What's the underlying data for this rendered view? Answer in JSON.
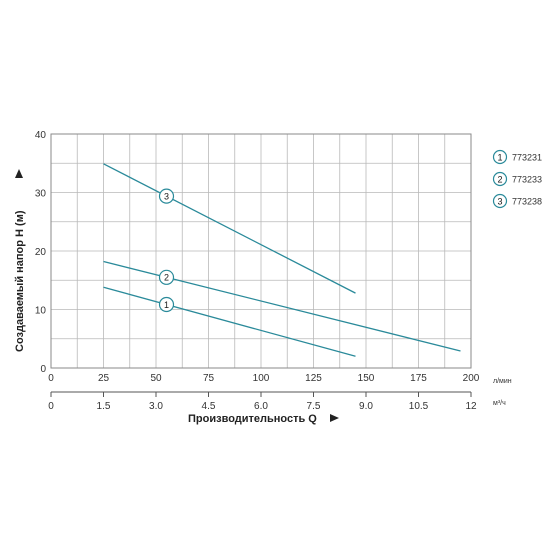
{
  "chart_data": {
    "type": "line",
    "colors": {
      "line": "#2a8a9a",
      "grid": "#b9b9b9",
      "frame": "#8a8a8a",
      "text": "#333333"
    },
    "x_primary": {
      "unit": "л/мин",
      "range": [
        0,
        200
      ],
      "ticks": [
        0,
        25,
        50,
        75,
        100,
        125,
        150,
        175,
        200
      ],
      "tick_labels": [
        "0",
        "25",
        "50",
        "75",
        "100",
        "125",
        "150",
        "175",
        "200"
      ]
    },
    "x_secondary": {
      "unit": "м³/ч",
      "range": [
        0,
        12
      ],
      "ticks": [
        0,
        1.5,
        3.0,
        4.5,
        6.0,
        7.5,
        9.0,
        10.5,
        12
      ],
      "tick_labels": [
        "0",
        "1.5",
        "3.0",
        "4.5",
        "6.0",
        "7.5",
        "9.0",
        "10.5",
        "12"
      ]
    },
    "xlabel": "Производительность Q",
    "ylabel": "Создаваемый напор Н (м)",
    "y": {
      "range": [
        0,
        40
      ],
      "ticks": [
        0,
        10,
        20,
        30,
        40
      ],
      "tick_labels": [
        "0",
        "10",
        "20",
        "30",
        "40"
      ]
    },
    "grid": true,
    "legend_position": "right",
    "series": [
      {
        "name": "773231",
        "marker": "1",
        "points": [
          [
            25,
            13.8
          ],
          [
            145,
            2.0
          ]
        ],
        "label_at": 55
      },
      {
        "name": "773233",
        "marker": "2",
        "points": [
          [
            25,
            18.2
          ],
          [
            195,
            2.9
          ]
        ],
        "label_at": 55
      },
      {
        "name": "773238",
        "marker": "3",
        "points": [
          [
            25,
            34.9
          ],
          [
            145,
            12.8
          ]
        ],
        "label_at": 55
      }
    ]
  }
}
